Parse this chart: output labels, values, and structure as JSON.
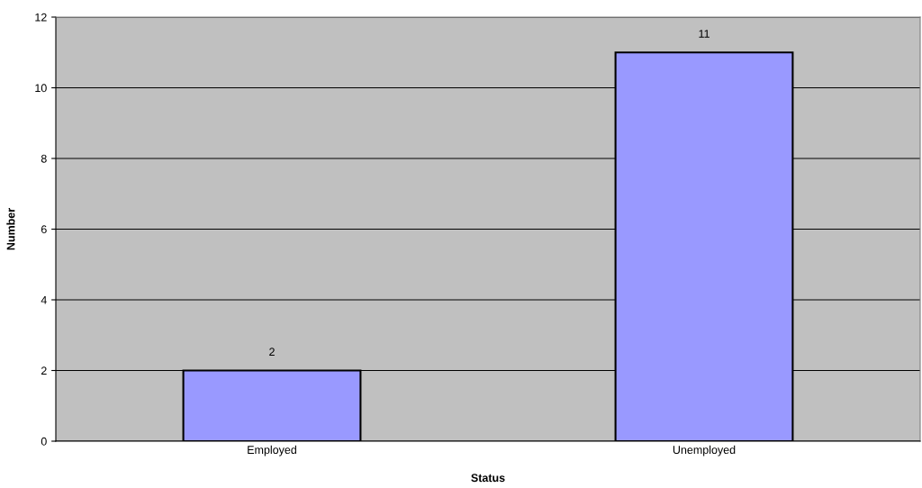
{
  "chart_data": {
    "type": "bar",
    "xlabel": "Status",
    "ylabel": "Number",
    "categories": [
      "Employed",
      "Unemployed"
    ],
    "values": [
      2,
      11
    ],
    "color": "#9999ff",
    "ylim": [
      0,
      12
    ],
    "yticks": [
      0,
      2,
      4,
      6,
      8,
      10,
      12
    ],
    "grid": "y",
    "data_labels": true
  }
}
